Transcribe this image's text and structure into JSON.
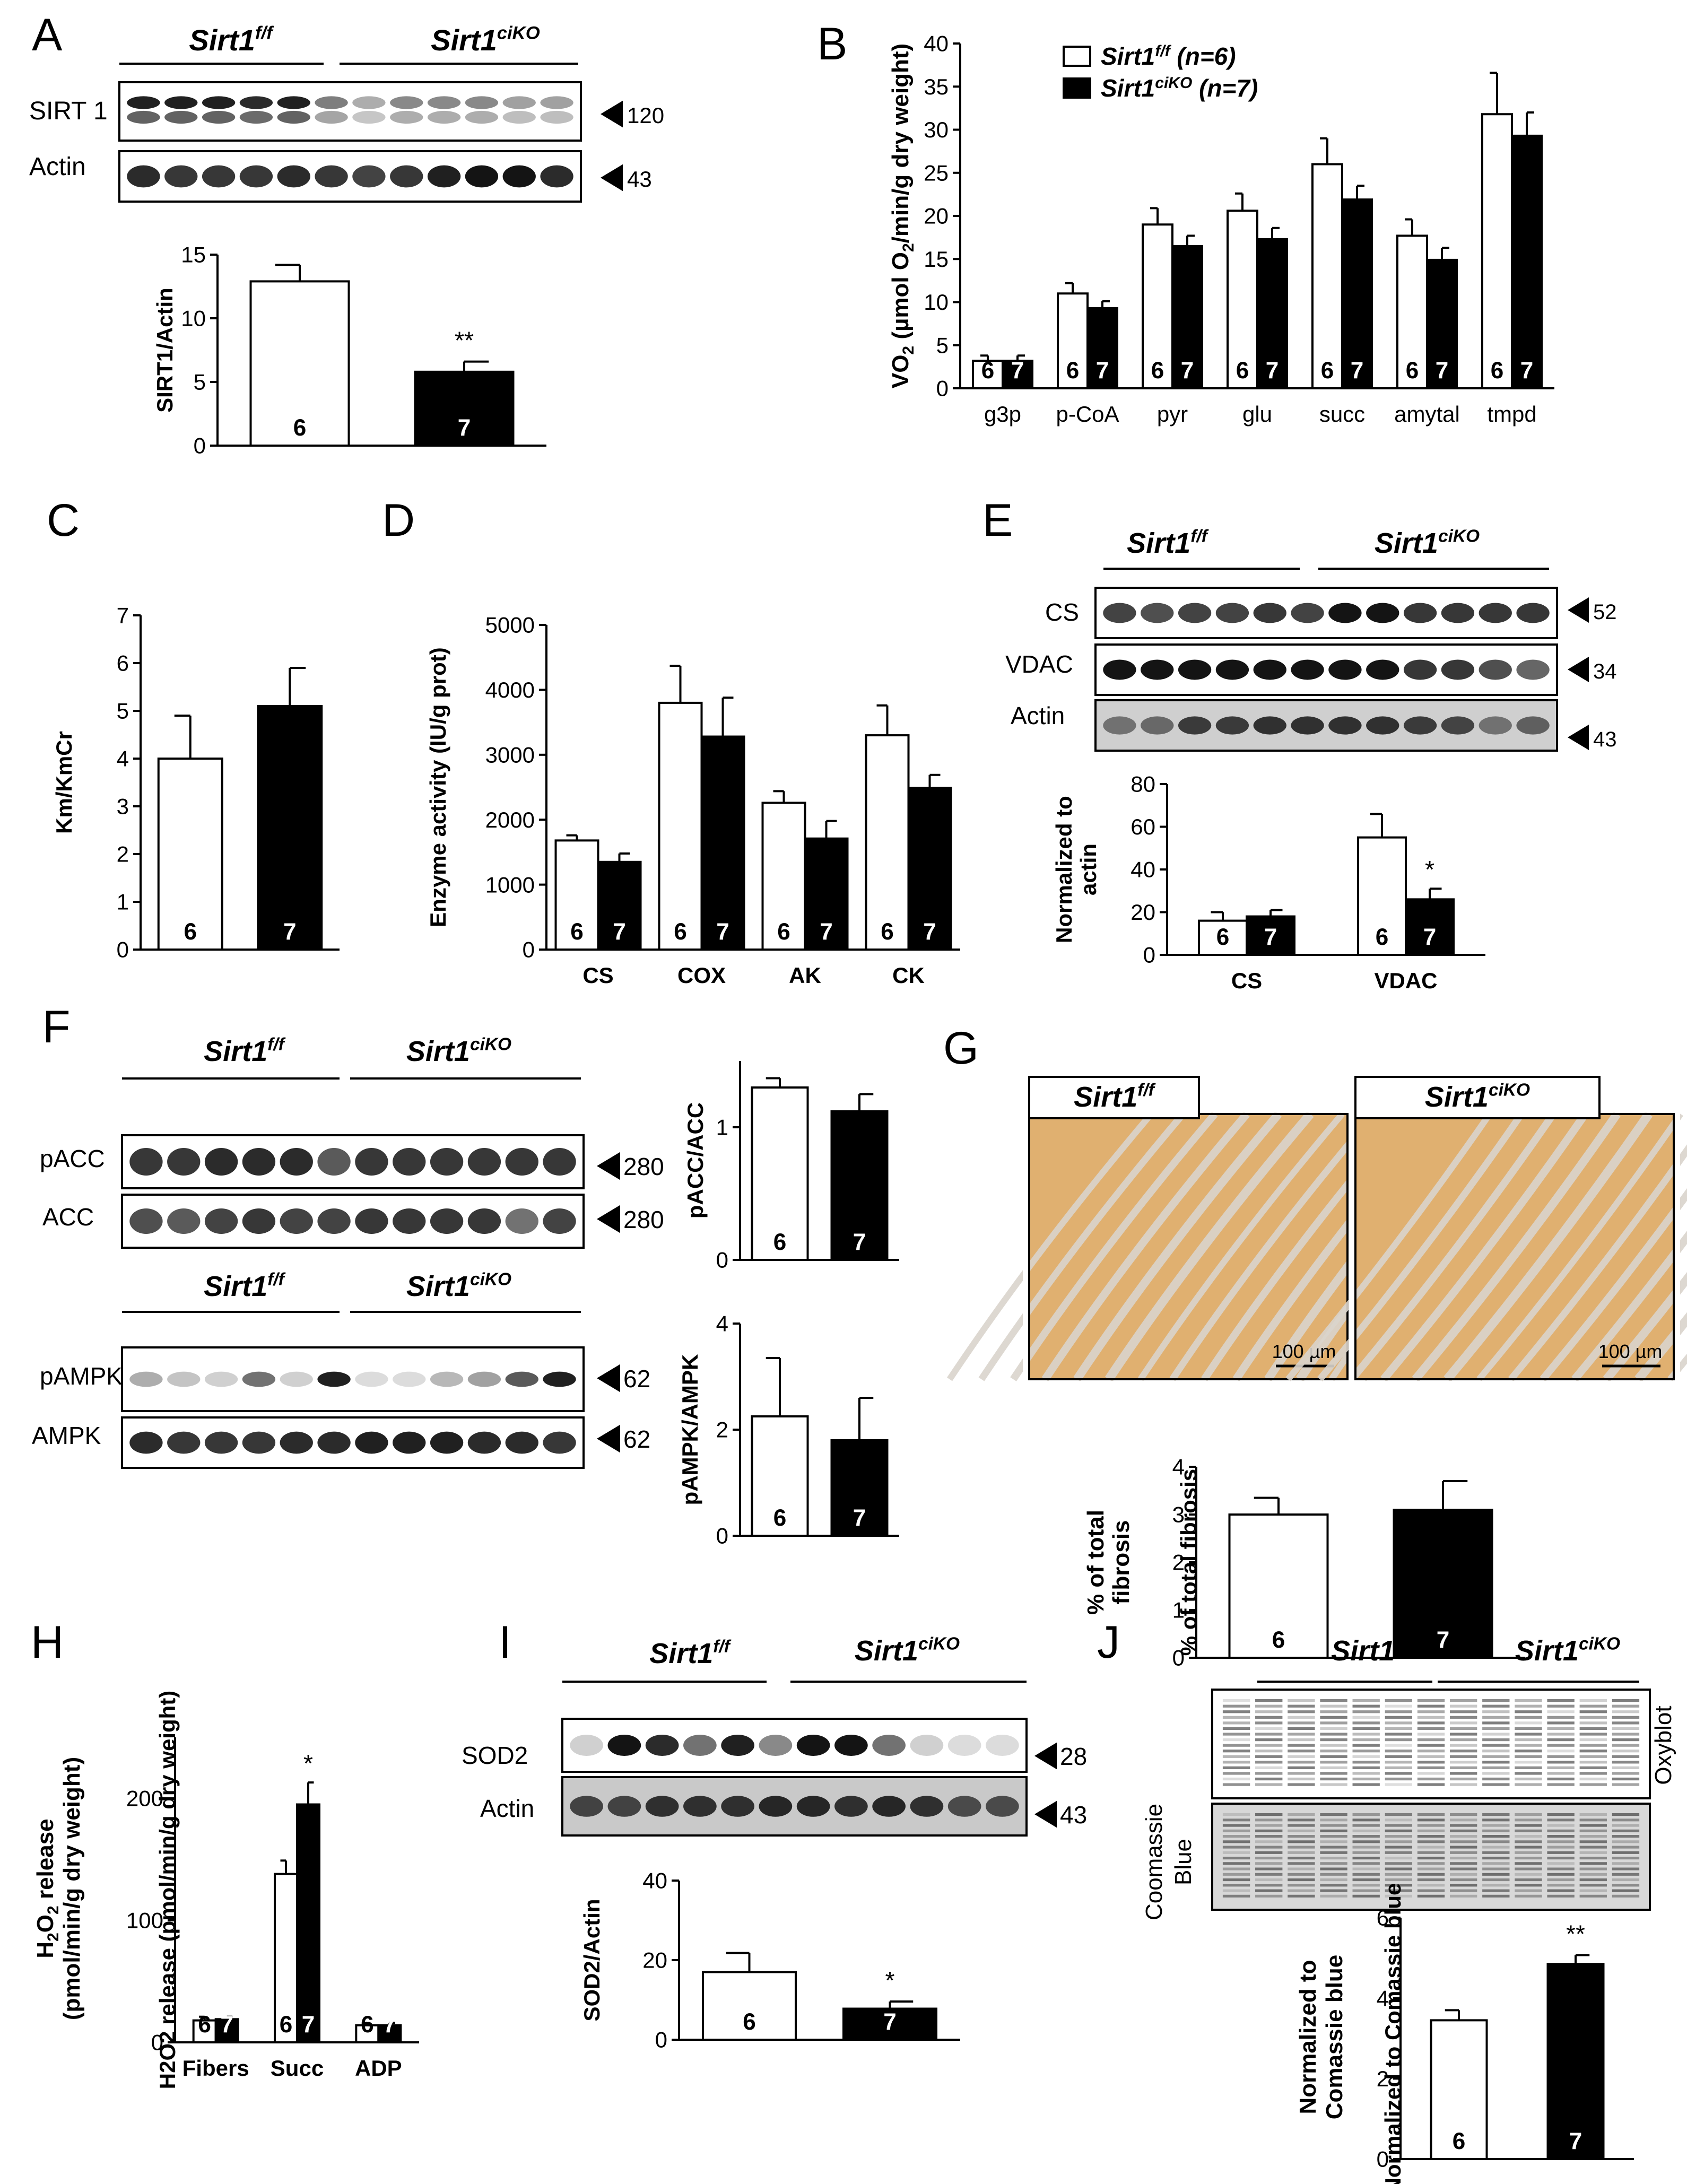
{
  "labels": {
    "ctrl_main": "Sirt1",
    "ctrl_sup": "f/f",
    "ko_main": "Sirt1",
    "ko_sup": "ciKO",
    "n_ctrl": "(n=6)",
    "n_ko": "(n=7)",
    "scale_bar": "100 µm"
  },
  "panels": {
    "A": {
      "letter": "A",
      "blot_labels": [
        "SIRT 1",
        "Actin"
      ],
      "mw": [
        "120",
        "43"
      ]
    },
    "B": {
      "letter": "B"
    },
    "C": {
      "letter": "C"
    },
    "D": {
      "letter": "D"
    },
    "E": {
      "letter": "E",
      "blot_labels": [
        "CS",
        "VDAC",
        "Actin"
      ],
      "mw": [
        "52",
        "34",
        "43"
      ]
    },
    "F": {
      "letter": "F",
      "blot_labels": [
        "pACC",
        "ACC",
        "pAMPK",
        "AMPK"
      ],
      "mw": [
        "280",
        "280",
        "62",
        "62"
      ]
    },
    "G": {
      "letter": "G"
    },
    "H": {
      "letter": "H"
    },
    "I": {
      "letter": "I",
      "blot_labels": [
        "SOD2",
        "Actin"
      ],
      "mw": [
        "28",
        "43"
      ]
    },
    "J": {
      "letter": "J",
      "blot_labels": [
        "Oxyblot",
        "Coomassie",
        "Blue"
      ]
    }
  },
  "colors": {
    "ctrl": "#ffffff",
    "ko": "#000000",
    "histo": "#e0b070"
  },
  "chart_data": [
    {
      "id": "A",
      "type": "bar",
      "categories": [
        "Sirt1 f/f",
        "Sirt1 ciKO"
      ],
      "values": [
        12.9,
        5.8
      ],
      "errors": [
        1.3,
        0.8
      ],
      "n": [
        "6",
        "7"
      ],
      "sig": [
        "",
        "**"
      ],
      "ylabel": "SIRT1/Actin",
      "ylim": [
        0,
        15
      ],
      "yticks": [
        0,
        5,
        10,
        15
      ]
    },
    {
      "id": "B",
      "type": "bar",
      "categories": [
        "g3p",
        "p-CoA",
        "pyr",
        "glu",
        "succ",
        "amytal",
        "tmpd"
      ],
      "series": [
        {
          "name": "Sirt1 f/f (n=6)",
          "values": [
            3.2,
            11.0,
            19.0,
            20.6,
            26.0,
            17.7,
            31.8
          ],
          "errors": [
            0.6,
            1.2,
            1.9,
            2.0,
            3.0,
            1.9,
            4.8
          ]
        },
        {
          "name": "Sirt1 ciKO (n=7)",
          "values": [
            3.2,
            9.3,
            16.5,
            17.3,
            21.9,
            14.9,
            29.3
          ],
          "errors": [
            0.6,
            0.8,
            1.2,
            1.3,
            1.6,
            1.4,
            2.7
          ]
        }
      ],
      "n": [
        "6",
        "7"
      ],
      "ylabel_main": "VO",
      "ylabel_sub": "2",
      "ylabel_rest": " (µmol O",
      "ylabel_sub2": "2",
      "ylabel_end": "/min/g dry weight)",
      "ylim": [
        0,
        40
      ],
      "yticks": [
        0,
        5,
        10,
        15,
        20,
        25,
        30,
        35,
        40
      ],
      "legend": "top"
    },
    {
      "id": "C",
      "type": "bar",
      "categories": [
        "Sirt1 f/f",
        "Sirt1 ciKO"
      ],
      "values": [
        4.0,
        5.1
      ],
      "errors": [
        0.9,
        0.8
      ],
      "n": [
        "6",
        "7"
      ],
      "ylabel": "Km/KmCr",
      "ylim": [
        0,
        7
      ],
      "yticks": [
        0,
        1,
        2,
        3,
        4,
        5,
        6,
        7
      ]
    },
    {
      "id": "D",
      "type": "bar",
      "categories": [
        "CS",
        "COX",
        "AK",
        "CK"
      ],
      "series": [
        {
          "name": "Sirt1 f/f",
          "values": [
            1680,
            3800,
            2260,
            3300
          ],
          "errors": [
            80,
            570,
            180,
            460
          ]
        },
        {
          "name": "Sirt1 ciKO",
          "values": [
            1350,
            3280,
            1710,
            2490
          ],
          "errors": [
            130,
            600,
            270,
            200
          ]
        }
      ],
      "n": [
        "6",
        "7"
      ],
      "ylabel": "Enzyme activity (IU/g prot)",
      "ylim": [
        0,
        5000
      ],
      "yticks": [
        0,
        1000,
        2000,
        3000,
        4000,
        5000
      ]
    },
    {
      "id": "E",
      "type": "bar",
      "categories": [
        "CS",
        "VDAC"
      ],
      "series": [
        {
          "name": "Sirt1 f/f",
          "values": [
            16,
            55
          ],
          "errors": [
            4,
            11
          ]
        },
        {
          "name": "Sirt1 ciKO",
          "values": [
            18,
            26
          ],
          "errors": [
            3,
            5
          ]
        }
      ],
      "sig": [
        "",
        "*"
      ],
      "n": [
        "6",
        "7"
      ],
      "ylabel": "Normalized to actin",
      "ylim": [
        0,
        80
      ],
      "yticks": [
        0,
        20,
        40,
        60,
        80
      ]
    },
    {
      "id": "F1",
      "type": "bar",
      "categories": [
        "Sirt1 f/f",
        "Sirt1 ciKO"
      ],
      "values": [
        1.3,
        1.12
      ],
      "errors": [
        0.07,
        0.13
      ],
      "n": [
        "6",
        "7"
      ],
      "ylabel": "pACC/ACC",
      "ylim": [
        0,
        1.5
      ],
      "yticks": [
        0,
        1
      ]
    },
    {
      "id": "F2",
      "type": "bar",
      "categories": [
        "Sirt1 f/f",
        "Sirt1 ciKO"
      ],
      "values": [
        2.25,
        1.8
      ],
      "errors": [
        1.1,
        0.8
      ],
      "n": [
        "6",
        "7"
      ],
      "ylabel": "pAMPK/AMPK",
      "ylim": [
        0,
        4
      ],
      "yticks": [
        0,
        2,
        4
      ]
    },
    {
      "id": "G",
      "type": "bar",
      "categories": [
        "Sirt1 f/f",
        "Sirt1 ciKO"
      ],
      "values": [
        3.0,
        3.1
      ],
      "errors": [
        0.35,
        0.6
      ],
      "n": [
        "6",
        "7"
      ],
      "ylabel": "% of total fibrosis",
      "ylim": [
        0,
        4
      ],
      "yticks": [
        0,
        1,
        2,
        3,
        4
      ]
    },
    {
      "id": "H",
      "type": "bar",
      "categories": [
        "Fibers",
        "Succ",
        "ADP"
      ],
      "series": [
        {
          "name": "Sirt1 f/f",
          "values": [
            18,
            138,
            14
          ],
          "errors": [
            3,
            11,
            2
          ]
        },
        {
          "name": "Sirt1 ciKO",
          "values": [
            19,
            195,
            14
          ],
          "errors": [
            2,
            18,
            2
          ]
        }
      ],
      "sig": [
        "",
        "*",
        ""
      ],
      "n": [
        "6",
        "7"
      ],
      "ylabel": "H2O2 release (pmol/min/g dry weight)",
      "ylim": [
        0,
        250
      ],
      "yticks": [
        0,
        100,
        200
      ]
    },
    {
      "id": "I",
      "type": "bar",
      "categories": [
        "Sirt1 f/f",
        "Sirt1 ciKO"
      ],
      "values": [
        17,
        7.8
      ],
      "errors": [
        4.8,
        1.8
      ],
      "n": [
        "6",
        "7"
      ],
      "sig": [
        "",
        "*"
      ],
      "ylabel": "SOD2/Actin",
      "ylim": [
        0,
        40
      ],
      "yticks": [
        0,
        20,
        40
      ]
    },
    {
      "id": "J",
      "type": "bar",
      "categories": [
        "Sirt1 f/f",
        "Sirt1 ciKO"
      ],
      "values": [
        3.45,
        4.85
      ],
      "errors": [
        0.25,
        0.22
      ],
      "n": [
        "6",
        "7"
      ],
      "sig": [
        "",
        "**"
      ],
      "ylabel": "Normalized to Comassie blue",
      "ylim": [
        0,
        6
      ],
      "yticks": [
        0,
        2,
        4,
        6
      ]
    }
  ]
}
